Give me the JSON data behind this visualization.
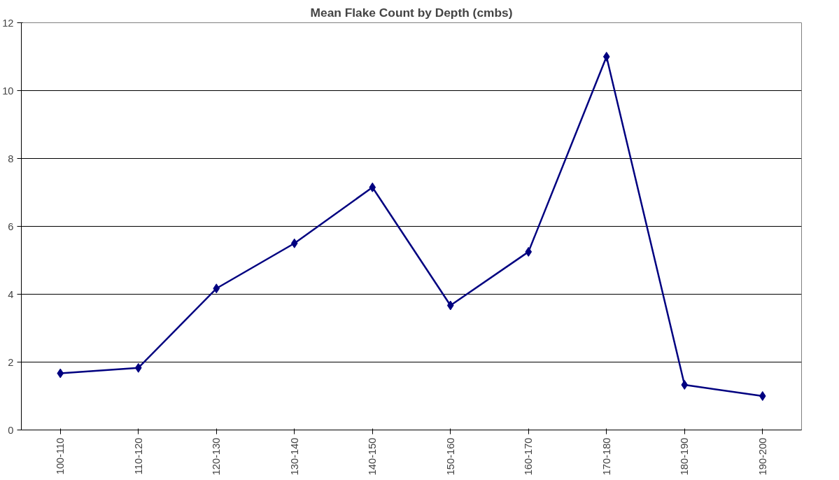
{
  "chart_data": {
    "type": "line",
    "title": "Mean Flake Count by Depth (cmbs)",
    "categories": [
      "100-110",
      "110-120",
      "120-130",
      "130-140",
      "140-150",
      "150-160",
      "160-170",
      "170-180",
      "180-190",
      "190-200"
    ],
    "series": [
      {
        "color": "#000080",
        "values": [
          1.67,
          1.83,
          4.17,
          5.5,
          7.15,
          3.67,
          5.25,
          11,
          1.33,
          1.0
        ]
      }
    ],
    "ylim": [
      0,
      12
    ],
    "yticks": [
      0,
      2,
      4,
      6,
      8,
      10,
      12
    ],
    "grid": "y",
    "marker": "diamond",
    "line_style": "solid"
  }
}
